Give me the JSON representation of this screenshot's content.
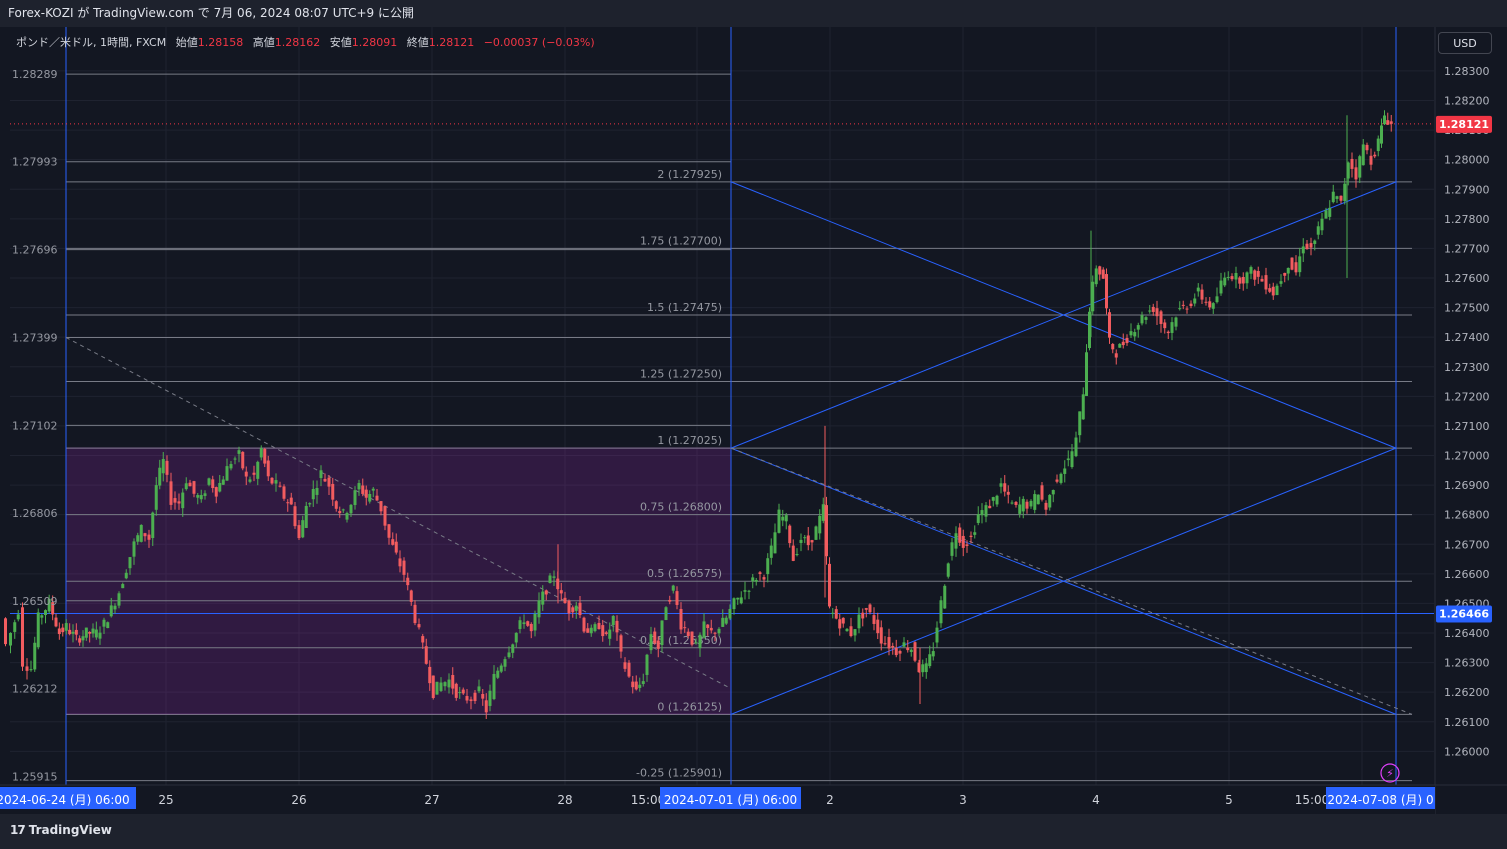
{
  "header": {
    "title": "Forex-KOZI が TradingView.com で 7月 06, 2024 08:07 UTC+9 に公開"
  },
  "legend": {
    "symbol": "ポンド／米ドル, 1時間, FXCM",
    "open_label": "始値",
    "open": "1.28158",
    "high_label": "高値",
    "high": "1.28162",
    "low_label": "安値",
    "low": "1.28091",
    "close_label": "終値",
    "close": "1.28121",
    "change": "−0.00037 (−0.03%)"
  },
  "currency_button": "USD",
  "branding": "TradingView",
  "colors": {
    "up": "#4caf50",
    "down": "#f25c5f",
    "accent": "#2962ff",
    "box": "#9c27b0",
    "background": "#131722"
  },
  "chart_data": {
    "type": "candlestick",
    "symbol": "GBPUSD",
    "timeframe": "1H",
    "y_range": [
      1.2592,
      1.2832
    ],
    "right_axis_ticks": [
      "1.28300",
      "1.28200",
      "1.28100",
      "1.28000",
      "1.27900",
      "1.27800",
      "1.27700",
      "1.27600",
      "1.27500",
      "1.27400",
      "1.27300",
      "1.27200",
      "1.27100",
      "1.27000",
      "1.26900",
      "1.26800",
      "1.26700",
      "1.26600",
      "1.26500",
      "1.26400",
      "1.26300",
      "1.26200",
      "1.26100",
      "1.26000"
    ],
    "left_axis_ticks": [
      "1.28289",
      "1.27993",
      "1.27696",
      "1.27399",
      "1.27102",
      "1.26806",
      "1.26509",
      "1.26212",
      "1.25915"
    ],
    "x_tick_labels": [
      "25",
      "26",
      "27",
      "28",
      "15:00",
      "2",
      "3",
      "4",
      "5",
      "15:00"
    ],
    "x_highlight_labels": [
      "2024-06-24 (月)  06:00",
      "2024-07-01 (月)  06:00",
      "2024-07-08 (月)  0"
    ],
    "last_price": "1.28121",
    "crosshair_price": "1.26466",
    "fib_levels": [
      {
        "label": "2 (1.27925)",
        "value": 1.27925
      },
      {
        "label": "1.75 (1.27700)",
        "value": 1.277
      },
      {
        "label": "1.5 (1.27475)",
        "value": 1.27475
      },
      {
        "label": "1.25 (1.27250)",
        "value": 1.2725
      },
      {
        "label": "1 (1.27025)",
        "value": 1.27025
      },
      {
        "label": "0.75 (1.26800)",
        "value": 1.268
      },
      {
        "label": "0.5 (1.26575)",
        "value": 1.26575
      },
      {
        "label": "0.25 (1.26350)",
        "value": 1.2635
      },
      {
        "label": "0 (1.26125)",
        "value": 1.26125
      },
      {
        "label": "-0.25 (1.25901)",
        "value": 1.25901
      }
    ],
    "weekly_range_box": {
      "top": 1.27025,
      "bottom": 1.26125
    },
    "candle_path": [
      [
        0,
        1.2645
      ],
      [
        5,
        1.2636
      ],
      [
        10,
        1.264
      ],
      [
        17,
        1.2648
      ],
      [
        22,
        1.263
      ],
      [
        30,
        1.2628
      ],
      [
        37,
        1.2645
      ],
      [
        48,
        1.265
      ],
      [
        58,
        1.264
      ],
      [
        65,
        1.2642
      ],
      [
        75,
        1.2638
      ],
      [
        85,
        1.264
      ],
      [
        95,
        1.264
      ],
      [
        103,
        1.2643
      ],
      [
        110,
        1.2648
      ],
      [
        118,
        1.2654
      ],
      [
        125,
        1.2662
      ],
      [
        133,
        1.267
      ],
      [
        140,
        1.2675
      ],
      [
        148,
        1.2672
      ],
      [
        155,
        1.269
      ],
      [
        162,
        1.2698
      ],
      [
        170,
        1.2685
      ],
      [
        178,
        1.2684
      ],
      [
        185,
        1.2692
      ],
      [
        193,
        1.2687
      ],
      [
        200,
        1.2685
      ],
      [
        208,
        1.2692
      ],
      [
        215,
        1.2688
      ],
      [
        222,
        1.2693
      ],
      [
        230,
        1.2698
      ],
      [
        238,
        1.27
      ],
      [
        245,
        1.2692
      ],
      [
        253,
        1.2693
      ],
      [
        260,
        1.2702
      ],
      [
        267,
        1.2692
      ],
      [
        275,
        1.269
      ],
      [
        283,
        1.2686
      ],
      [
        290,
        1.2683
      ],
      [
        298,
        1.2672
      ],
      [
        305,
        1.2683
      ],
      [
        312,
        1.2688
      ],
      [
        320,
        1.2694
      ],
      [
        328,
        1.269
      ],
      [
        335,
        1.2683
      ],
      [
        342,
        1.268
      ],
      [
        350,
        1.2684
      ],
      [
        358,
        1.269
      ],
      [
        365,
        1.2686
      ],
      [
        372,
        1.2688
      ],
      [
        380,
        1.2682
      ],
      [
        388,
        1.2672
      ],
      [
        395,
        1.2666
      ],
      [
        403,
        1.266
      ],
      [
        410,
        1.265
      ],
      [
        418,
        1.264
      ],
      [
        425,
        1.263
      ],
      [
        432,
        1.262
      ],
      [
        440,
        1.2623
      ],
      [
        448,
        1.2624
      ],
      [
        455,
        1.262
      ],
      [
        462,
        1.2618
      ],
      [
        470,
        1.2618
      ],
      [
        478,
        1.262
      ],
      [
        485,
        1.2614
      ],
      [
        493,
        1.2625
      ],
      [
        500,
        1.263
      ],
      [
        508,
        1.2635
      ],
      [
        515,
        1.264
      ],
      [
        523,
        1.2645
      ],
      [
        530,
        1.264
      ],
      [
        538,
        1.265
      ],
      [
        545,
        1.2655
      ],
      [
        553,
        1.266
      ],
      [
        560,
        1.2652
      ],
      [
        568,
        1.2648
      ],
      [
        575,
        1.265
      ],
      [
        583,
        1.2642
      ],
      [
        590,
        1.264
      ],
      [
        598,
        1.2643
      ],
      [
        605,
        1.2638
      ],
      [
        612,
        1.2645
      ],
      [
        620,
        1.2632
      ],
      [
        628,
        1.2625
      ],
      [
        635,
        1.262
      ],
      [
        642,
        1.2625
      ],
      [
        650,
        1.264
      ],
      [
        657,
        1.2635
      ],
      [
        665,
        1.265
      ],
      [
        672,
        1.2655
      ],
      [
        680,
        1.2643
      ],
      [
        687,
        1.264
      ],
      [
        695,
        1.2635
      ],
      [
        703,
        1.2642
      ],
      [
        710,
        1.264
      ],
      [
        718,
        1.2642
      ],
      [
        725,
        1.2645
      ],
      [
        733,
        1.265
      ],
      [
        740,
        1.2653
      ],
      [
        748,
        1.2656
      ],
      [
        755,
        1.2659
      ],
      [
        763,
        1.266
      ],
      [
        770,
        1.2668
      ],
      [
        778,
        1.268
      ],
      [
        785,
        1.2678
      ],
      [
        792,
        1.2665
      ],
      [
        800,
        1.2672
      ],
      [
        807,
        1.267
      ],
      [
        815,
        1.2675
      ],
      [
        822,
        1.2682
      ],
      [
        828,
        1.2648
      ],
      [
        835,
        1.2645
      ],
      [
        842,
        1.2642
      ],
      [
        850,
        1.264
      ],
      [
        858,
        1.2645
      ],
      [
        865,
        1.2648
      ],
      [
        873,
        1.2644
      ],
      [
        880,
        1.2638
      ],
      [
        888,
        1.2636
      ],
      [
        895,
        1.2634
      ],
      [
        903,
        1.2636
      ],
      [
        910,
        1.2635
      ],
      [
        918,
        1.2628
      ],
      [
        925,
        1.2628
      ],
      [
        932,
        1.2635
      ],
      [
        940,
        1.265
      ],
      [
        947,
        1.2665
      ],
      [
        955,
        1.2675
      ],
      [
        962,
        1.267
      ],
      [
        970,
        1.2672
      ],
      [
        977,
        1.268
      ],
      [
        985,
        1.2682
      ],
      [
        992,
        1.2685
      ],
      [
        1000,
        1.269
      ],
      [
        1007,
        1.2685
      ],
      [
        1015,
        1.2682
      ],
      [
        1022,
        1.2684
      ],
      [
        1030,
        1.2683
      ],
      [
        1037,
        1.2688
      ],
      [
        1045,
        1.2682
      ],
      [
        1052,
        1.269
      ],
      [
        1060,
        1.2695
      ],
      [
        1067,
        1.2698
      ],
      [
        1075,
        1.2705
      ],
      [
        1082,
        1.2722
      ],
      [
        1088,
        1.275
      ],
      [
        1095,
        1.2764
      ],
      [
        1102,
        1.276
      ],
      [
        1108,
        1.2738
      ],
      [
        1115,
        1.2735
      ],
      [
        1122,
        1.2738
      ],
      [
        1130,
        1.2742
      ],
      [
        1137,
        1.2745
      ],
      [
        1145,
        1.2748
      ],
      [
        1152,
        1.275
      ],
      [
        1160,
        1.2745
      ],
      [
        1167,
        1.2742
      ],
      [
        1175,
        1.2748
      ],
      [
        1182,
        1.275
      ],
      [
        1190,
        1.2752
      ],
      [
        1197,
        1.2755
      ],
      [
        1205,
        1.2752
      ],
      [
        1212,
        1.275
      ],
      [
        1220,
        1.2758
      ],
      [
        1227,
        1.2762
      ],
      [
        1235,
        1.276
      ],
      [
        1242,
        1.276
      ],
      [
        1250,
        1.2762
      ],
      [
        1257,
        1.276
      ],
      [
        1265,
        1.2758
      ],
      [
        1272,
        1.2755
      ],
      [
        1280,
        1.276
      ],
      [
        1287,
        1.2765
      ],
      [
        1295,
        1.2762
      ],
      [
        1302,
        1.2772
      ],
      [
        1310,
        1.277
      ],
      [
        1317,
        1.2776
      ],
      [
        1325,
        1.2782
      ],
      [
        1332,
        1.2788
      ],
      [
        1340,
        1.2785
      ],
      [
        1347,
        1.28
      ],
      [
        1355,
        1.2795
      ],
      [
        1362,
        1.2805
      ],
      [
        1370,
        1.28
      ],
      [
        1377,
        1.2806
      ],
      [
        1383,
        1.2815
      ],
      [
        1390,
        1.2812
      ]
    ]
  }
}
